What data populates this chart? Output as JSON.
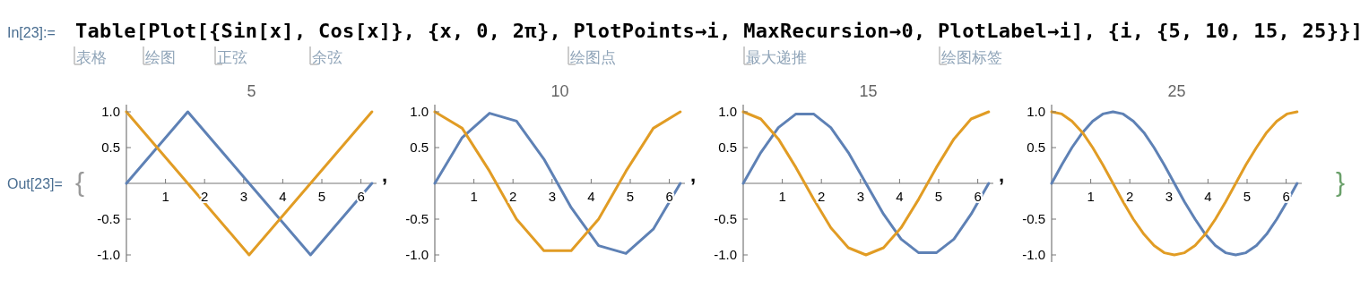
{
  "chart_data": [
    {
      "type": "line",
      "title": "5",
      "x": [
        0,
        1.57,
        3.14,
        4.71,
        6.28
      ],
      "series": [
        {
          "color": "#5e81b5",
          "values": [
            0,
            1,
            0,
            -1,
            0
          ]
        },
        {
          "color": "#e19c24",
          "values": [
            1,
            0,
            -1,
            0,
            1
          ]
        }
      ],
      "xlim": [
        0,
        6.4
      ],
      "ylim": [
        -1.1,
        1.1
      ],
      "xticks": [
        1,
        2,
        3,
        4,
        5,
        6
      ],
      "yticks": [
        {
          "value": -1,
          "label": "-1.0"
        },
        {
          "value": -0.5,
          "label": "-0.5"
        },
        {
          "value": 0.5,
          "label": "0.5"
        },
        {
          "value": 1,
          "label": "1.0"
        }
      ],
      "grid": false,
      "marker": "none",
      "line_style": "solid",
      "annotations": [
        "In[23]:=",
        "Table[Plot[{Sin[x], Cos[x]}, {x, 0, 2π}, PlotPoints→i, MaxRecursion→0, PlotLabel→i], {i, {5, 10, 15, 25}}]",
        "表格",
        "绘图",
        "正弦",
        "余弦",
        "绘图点",
        "最大递推",
        "绘图标签",
        "Out[23]=",
        "{",
        ","
      ]
    },
    {
      "type": "line",
      "title": "10",
      "x": [
        0,
        0.7,
        1.4,
        2.09,
        2.79,
        3.49,
        4.19,
        4.89,
        5.59,
        6.28
      ],
      "series": [
        {
          "color": "#5e81b5",
          "values": [
            0,
            0.64,
            0.98,
            0.87,
            0.34,
            -0.34,
            -0.87,
            -0.98,
            -0.64,
            0
          ]
        },
        {
          "color": "#e19c24",
          "values": [
            1,
            0.77,
            0.17,
            -0.5,
            -0.94,
            -0.94,
            -0.5,
            0.17,
            0.77,
            1
          ]
        }
      ],
      "xlim": [
        0,
        6.4
      ],
      "ylim": [
        -1.1,
        1.1
      ],
      "xticks": [
        1,
        2,
        3,
        4,
        5,
        6
      ],
      "yticks": [
        {
          "value": -1,
          "label": "-1.0"
        },
        {
          "value": -0.5,
          "label": "-0.5"
        },
        {
          "value": 0.5,
          "label": "0.5"
        },
        {
          "value": 1,
          "label": "1.0"
        }
      ],
      "grid": false,
      "marker": "none",
      "line_style": "solid",
      "annotations": [
        ","
      ]
    },
    {
      "type": "line",
      "title": "15",
      "x": [
        0,
        0.45,
        0.9,
        1.35,
        1.8,
        2.24,
        2.69,
        3.14,
        3.59,
        4.04,
        4.49,
        4.94,
        5.39,
        5.83,
        6.28
      ],
      "series": [
        {
          "color": "#5e81b5",
          "values": [
            0,
            0.43,
            0.78,
            0.97,
            0.97,
            0.78,
            0.43,
            0,
            -0.43,
            -0.78,
            -0.97,
            -0.97,
            -0.78,
            -0.43,
            0
          ]
        },
        {
          "color": "#e19c24",
          "values": [
            1,
            0.9,
            0.62,
            0.22,
            -0.22,
            -0.62,
            -0.9,
            -1,
            -0.9,
            -0.62,
            -0.22,
            0.22,
            0.62,
            0.9,
            1
          ]
        }
      ],
      "xlim": [
        0,
        6.4
      ],
      "ylim": [
        -1.1,
        1.1
      ],
      "xticks": [
        1,
        2,
        3,
        4,
        5,
        6
      ],
      "yticks": [
        {
          "value": -1,
          "label": "-1.0"
        },
        {
          "value": -0.5,
          "label": "-0.5"
        },
        {
          "value": 0.5,
          "label": "0.5"
        },
        {
          "value": 1,
          "label": "1.0"
        }
      ],
      "grid": false,
      "marker": "none",
      "line_style": "solid",
      "annotations": [
        ","
      ]
    },
    {
      "type": "line",
      "title": "25",
      "x": [
        0,
        0.26,
        0.52,
        0.79,
        1.05,
        1.31,
        1.57,
        1.83,
        2.09,
        2.36,
        2.62,
        2.88,
        3.14,
        3.4,
        3.67,
        3.93,
        4.19,
        4.45,
        4.71,
        4.97,
        5.24,
        5.5,
        5.76,
        6.02,
        6.28
      ],
      "series": [
        {
          "color": "#5e81b5",
          "values": [
            0,
            0.26,
            0.5,
            0.71,
            0.87,
            0.97,
            1,
            0.97,
            0.87,
            0.71,
            0.5,
            0.26,
            0,
            -0.26,
            -0.5,
            -0.71,
            -0.87,
            -0.97,
            -1,
            -0.97,
            -0.87,
            -0.71,
            -0.5,
            -0.26,
            0
          ]
        },
        {
          "color": "#e19c24",
          "values": [
            1,
            0.97,
            0.87,
            0.71,
            0.5,
            0.26,
            0,
            -0.26,
            -0.5,
            -0.71,
            -0.87,
            -0.97,
            -1,
            -0.97,
            -0.87,
            -0.71,
            -0.5,
            -0.26,
            0,
            0.26,
            0.5,
            0.71,
            0.87,
            0.97,
            1
          ]
        }
      ],
      "xlim": [
        0,
        6.4
      ],
      "ylim": [
        -1.1,
        1.1
      ],
      "xticks": [
        1,
        2,
        3,
        4,
        5,
        6
      ],
      "yticks": [
        {
          "value": -1,
          "label": "-1.0"
        },
        {
          "value": -0.5,
          "label": "-0.5"
        },
        {
          "value": 0.5,
          "label": "0.5"
        },
        {
          "value": 1,
          "label": "1.0"
        }
      ],
      "grid": false,
      "marker": "none",
      "line_style": "solid",
      "annotations": [
        "}"
      ]
    }
  ]
}
